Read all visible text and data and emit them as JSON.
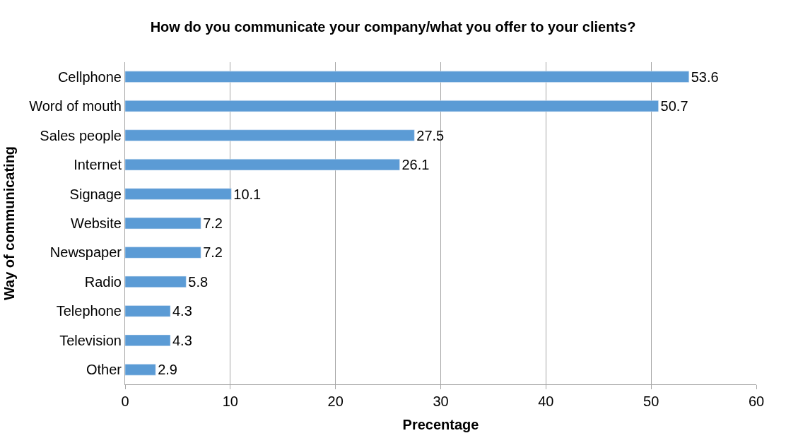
{
  "chart_data": {
    "type": "bar",
    "orientation": "horizontal",
    "title": "How do you communicate your company/what you offer to your clients?",
    "xlabel": "Precentage",
    "ylabel": "Way of communicating",
    "categories": [
      "Cellphone",
      "Word of mouth",
      "Sales people",
      "Internet",
      "Signage",
      "Website",
      "Newspaper",
      "Radio",
      "Telephone",
      "Television",
      "Other"
    ],
    "values": [
      53.6,
      50.7,
      27.5,
      26.1,
      10.1,
      7.2,
      7.2,
      5.8,
      4.3,
      4.3,
      2.9
    ],
    "color": "#5b9bd5",
    "xlim": [
      0,
      60
    ],
    "xticks": [
      0,
      10,
      20,
      30,
      40,
      50,
      60
    ],
    "grid": "x",
    "data_labels": true
  }
}
